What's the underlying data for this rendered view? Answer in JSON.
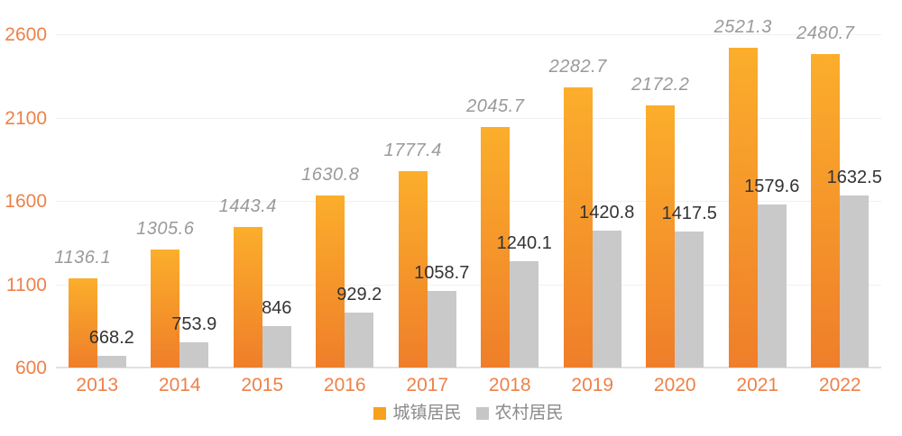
{
  "chart_data": {
    "type": "bar",
    "title": "",
    "categories": [
      "2013",
      "2014",
      "2015",
      "2016",
      "2017",
      "2018",
      "2019",
      "2020",
      "2021",
      "2022"
    ],
    "series": [
      {
        "name": "城镇居民",
        "values": [
          1136.1,
          1305.6,
          1443.4,
          1630.8,
          1777.4,
          2045.7,
          2282.7,
          2172.2,
          2521.3,
          2480.7
        ],
        "labels": [
          "1136.1",
          "1305.6",
          "1443.4",
          "1630.8",
          "1777.4",
          "2045.7",
          "2282.7",
          "2172.2",
          "2521.3",
          "2480.7"
        ],
        "color_top": "#fbae2b",
        "color_bottom": "#ef7e2a",
        "legend_swatch_color": "#f7a11e",
        "label_style": "italic-gray"
      },
      {
        "name": "农村居民",
        "values": [
          668.2,
          753.9,
          846,
          929.2,
          1058.7,
          1240.1,
          1420.8,
          1417.5,
          1579.6,
          1632.5
        ],
        "labels": [
          "668.2",
          "753.9",
          "846",
          "929.2",
          "1058.7",
          "1240.1",
          "1420.8",
          "1417.5",
          "1579.6",
          "1632.5"
        ],
        "color": "#c9c9c9",
        "legend_swatch_color": "#c6c6c6",
        "label_style": "dark"
      }
    ],
    "y_axis": {
      "ticks": [
        600,
        1100,
        1600,
        2100,
        2600
      ],
      "tick_labels": [
        "600",
        "1100",
        "1600",
        "2100",
        "2600"
      ],
      "min": 600,
      "max": 2600,
      "color": "#ee8149"
    },
    "x_axis": {
      "color": "#ee8149"
    },
    "grid": true,
    "legend_position": "bottom-center",
    "background_color": "#ffffff",
    "value_label_colors": {
      "urban": "#9a9a9a",
      "rural": "#333333"
    }
  },
  "legend": {
    "items": [
      {
        "label": "城镇居民"
      },
      {
        "label": "农村居民"
      }
    ]
  }
}
